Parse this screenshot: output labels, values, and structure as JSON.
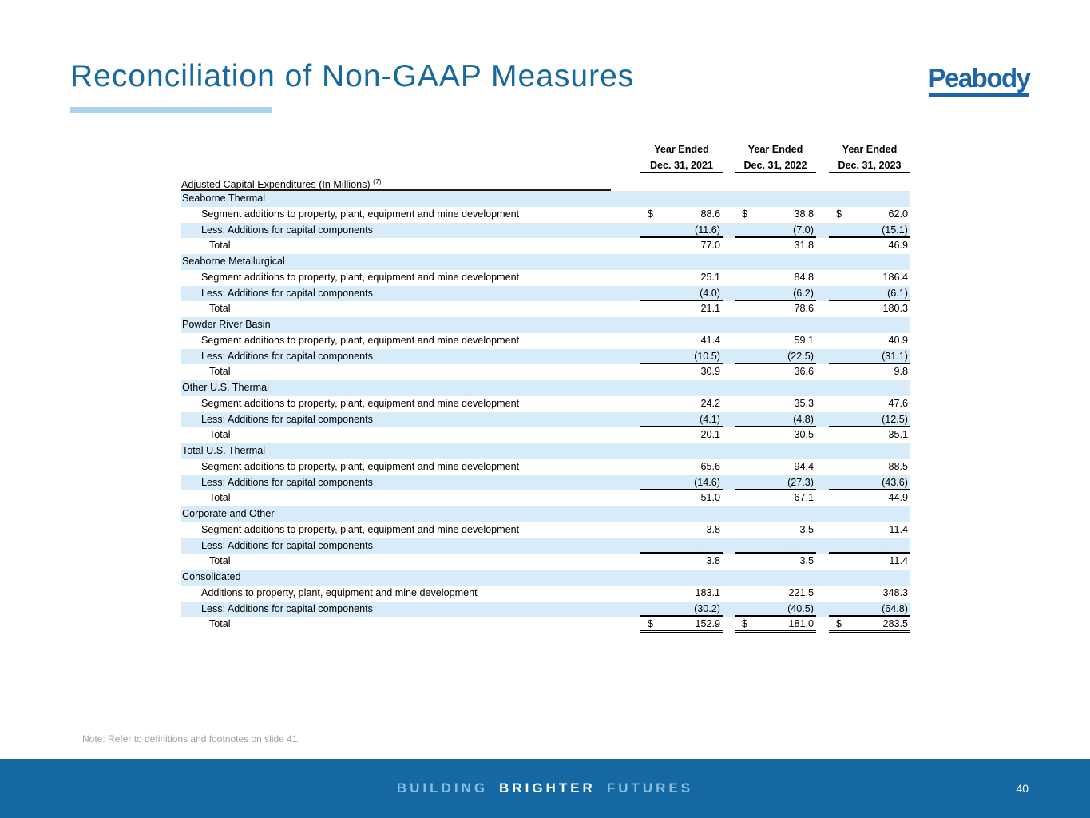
{
  "slide": {
    "title": "Reconciliation of Non-GAAP Measures",
    "logo_text": "Peabody",
    "footnote": "Note: Refer to definitions and footnotes on slide 41.",
    "footer": {
      "tagline_word1": "BUILDING",
      "tagline_word2": "BRIGHTER",
      "tagline_word3": "FUTURES",
      "page_number": "40"
    },
    "colors": {
      "title_blue": "#17699e",
      "logo_blue": "#1d64a9",
      "accent_light_blue": "#a9d3ee",
      "row_shade_blue": "#d7ebf9",
      "footer_bar_blue": "#1668a2",
      "footer_light_text": "#86bde1",
      "footnote_gray": "#9b9fa3"
    }
  },
  "table": {
    "caption": "Adjusted Capital Expenditures (In Millions)",
    "caption_superscript": "(7)",
    "column_headers": [
      {
        "line1": "Year Ended",
        "line2": "Dec. 31, 2021"
      },
      {
        "line1": "Year Ended",
        "line2": "Dec. 31, 2022"
      },
      {
        "line1": "Year Ended",
        "line2": "Dec. 31, 2023"
      }
    ],
    "rows": [
      {
        "type": "section",
        "label": "Seaborne Thermal",
        "shade": true,
        "indent": 0,
        "values": [
          "",
          "",
          ""
        ]
      },
      {
        "type": "item",
        "label": "Segment additions to property, plant, equipment and mine development",
        "shade": false,
        "indent": 1,
        "dollar": true,
        "values": [
          "88.6",
          "38.8",
          "62.0"
        ]
      },
      {
        "type": "less",
        "label": "Less: Additions for capital components",
        "shade": true,
        "indent": 1,
        "underline": true,
        "values": [
          "(11.6)",
          "(7.0)",
          "(15.1)"
        ]
      },
      {
        "type": "total",
        "label": "Total",
        "shade": false,
        "indent": 2,
        "values": [
          "77.0",
          "31.8",
          "46.9"
        ]
      },
      {
        "type": "section",
        "label": "Seaborne Metallurgical",
        "shade": true,
        "indent": 0,
        "values": [
          "",
          "",
          ""
        ]
      },
      {
        "type": "item",
        "label": "Segment additions to property, plant, equipment and mine development",
        "shade": false,
        "indent": 1,
        "values": [
          "25.1",
          "84.8",
          "186.4"
        ]
      },
      {
        "type": "less",
        "label": "Less: Additions for capital components",
        "shade": true,
        "indent": 1,
        "underline": true,
        "values": [
          "(4.0)",
          "(6.2)",
          "(6.1)"
        ]
      },
      {
        "type": "total",
        "label": "Total",
        "shade": false,
        "indent": 2,
        "values": [
          "21.1",
          "78.6",
          "180.3"
        ]
      },
      {
        "type": "section",
        "label": "Powder River Basin",
        "shade": true,
        "indent": 0,
        "values": [
          "",
          "",
          ""
        ]
      },
      {
        "type": "item",
        "label": "Segment additions to property, plant, equipment and mine development",
        "shade": false,
        "indent": 1,
        "values": [
          "41.4",
          "59.1",
          "40.9"
        ]
      },
      {
        "type": "less",
        "label": "Less: Additions for capital components",
        "shade": true,
        "indent": 1,
        "underline": true,
        "values": [
          "(10.5)",
          "(22.5)",
          "(31.1)"
        ]
      },
      {
        "type": "total",
        "label": "Total",
        "shade": false,
        "indent": 2,
        "values": [
          "30.9",
          "36.6",
          "9.8"
        ]
      },
      {
        "type": "section",
        "label": "Other U.S. Thermal",
        "shade": true,
        "indent": 0,
        "values": [
          "",
          "",
          ""
        ]
      },
      {
        "type": "item",
        "label": "Segment additions to property, plant, equipment and mine development",
        "shade": false,
        "indent": 1,
        "values": [
          "24.2",
          "35.3",
          "47.6"
        ]
      },
      {
        "type": "less",
        "label": "Less: Additions for capital components",
        "shade": true,
        "indent": 1,
        "underline": true,
        "values": [
          "(4.1)",
          "(4.8)",
          "(12.5)"
        ]
      },
      {
        "type": "total",
        "label": "Total",
        "shade": false,
        "indent": 2,
        "values": [
          "20.1",
          "30.5",
          "35.1"
        ]
      },
      {
        "type": "section",
        "label": "Total U.S. Thermal",
        "shade": true,
        "indent": 0,
        "values": [
          "",
          "",
          ""
        ]
      },
      {
        "type": "item",
        "label": "Segment additions to property, plant, equipment and mine development",
        "shade": false,
        "indent": 1,
        "values": [
          "65.6",
          "94.4",
          "88.5"
        ]
      },
      {
        "type": "less",
        "label": "Less: Additions for capital components",
        "shade": true,
        "indent": 1,
        "underline": true,
        "values": [
          "(14.6)",
          "(27.3)",
          "(43.6)"
        ]
      },
      {
        "type": "total",
        "label": "Total",
        "shade": false,
        "indent": 2,
        "values": [
          "51.0",
          "67.1",
          "44.9"
        ]
      },
      {
        "type": "section",
        "label": "Corporate and Other",
        "shade": true,
        "indent": 0,
        "values": [
          "",
          "",
          ""
        ]
      },
      {
        "type": "item",
        "label": "Segment additions to property, plant, equipment and mine development",
        "shade": false,
        "indent": 1,
        "values": [
          "3.8",
          "3.5",
          "11.4"
        ]
      },
      {
        "type": "less",
        "label": "Less: Additions for capital components",
        "shade": true,
        "indent": 1,
        "underline": true,
        "values": [
          "-",
          "-",
          "-"
        ]
      },
      {
        "type": "total",
        "label": "Total",
        "shade": false,
        "indent": 2,
        "values": [
          "3.8",
          "3.5",
          "11.4"
        ]
      },
      {
        "type": "section",
        "label": "Consolidated",
        "shade": true,
        "indent": 0,
        "values": [
          "",
          "",
          ""
        ]
      },
      {
        "type": "item",
        "label": "Additions to property, plant, equipment and mine development",
        "shade": false,
        "indent": 1,
        "values": [
          "183.1",
          "221.5",
          "348.3"
        ]
      },
      {
        "type": "less",
        "label": "Less: Additions for capital components",
        "shade": true,
        "indent": 1,
        "underline": true,
        "values": [
          "(30.2)",
          "(40.5)",
          "(64.8)"
        ]
      },
      {
        "type": "grand-total",
        "label": "Total",
        "shade": false,
        "indent": 2,
        "dollar": true,
        "double": true,
        "values": [
          "152.9",
          "181.0",
          "283.5"
        ]
      }
    ]
  }
}
